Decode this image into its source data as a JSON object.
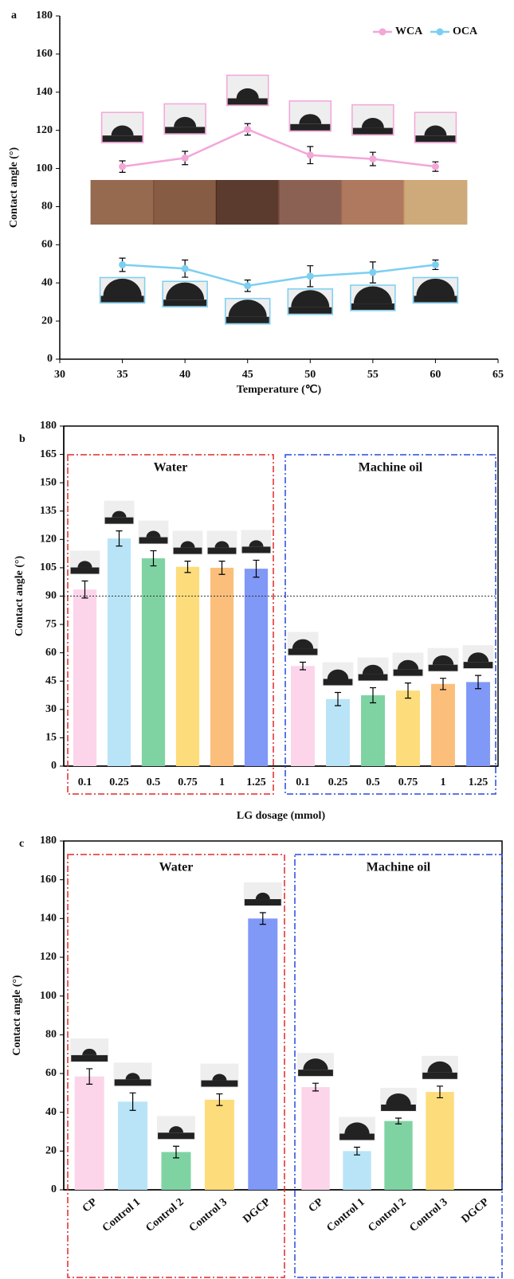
{
  "chart_data": [
    {
      "type": "line",
      "title": "a",
      "x_label": "Temperature (℃)",
      "y_label": "Contact angle (°)",
      "x": [
        35,
        40,
        45,
        50,
        55,
        60
      ],
      "series": [
        {
          "name": "WCA",
          "color": "#f3a6d8",
          "values": [
            101,
            105.5,
            120.5,
            107,
            105,
            101
          ],
          "errors": [
            3,
            3.5,
            3,
            4.5,
            3.5,
            2.5
          ]
        },
        {
          "name": "OCA",
          "color": "#7ccff0",
          "values": [
            49.5,
            47.5,
            38.5,
            43.5,
            45.5,
            49.5
          ],
          "errors": [
            3.5,
            4.5,
            3,
            5.5,
            5.5,
            2.5
          ]
        }
      ],
      "xlim": [
        30,
        65
      ],
      "xticks": [
        30,
        35,
        40,
        45,
        50,
        55,
        60,
        65
      ],
      "ylim": [
        0,
        180
      ],
      "yticks": [
        0,
        20,
        40,
        60,
        80,
        100,
        120,
        140,
        160,
        180
      ],
      "legend": "upper right"
    },
    {
      "type": "bar",
      "title": "b",
      "x_label": "LG dosage (mmol)",
      "y_label": "Contact angle (°)",
      "colors": [
        "#fcd5ea",
        "#b9e4f7",
        "#7fd3a3",
        "#fddc7b",
        "#fbbf7b",
        "#8098f6"
      ],
      "groups": [
        {
          "name": "Water",
          "color": "#e02828",
          "categories": [
            "0.1",
            "0.25",
            "0.5",
            "0.75",
            "1",
            "1.25"
          ],
          "values": [
            93.5,
            120.5,
            110,
            105.5,
            105,
            104.5
          ],
          "errors": [
            4.5,
            4,
            4,
            3,
            3.5,
            4.5
          ]
        },
        {
          "name": "Machine oil",
          "color": "#2848e0",
          "categories": [
            "0.1",
            "0.25",
            "0.5",
            "0.75",
            "1",
            "1.25"
          ],
          "values": [
            53,
            35.5,
            37.5,
            40,
            43.5,
            44.5
          ],
          "errors": [
            2,
            3.5,
            4,
            4,
            3,
            3.5
          ]
        }
      ],
      "hline": 90,
      "ylim": [
        0,
        180
      ],
      "yticks": [
        0,
        15,
        30,
        45,
        60,
        75,
        90,
        105,
        120,
        135,
        150,
        165,
        180
      ]
    },
    {
      "type": "bar",
      "title": "c",
      "y_label": "Contact angle (°)",
      "colors": [
        "#fcd5ea",
        "#b9e4f7",
        "#7fd3a3",
        "#fddc7b",
        "#8098f6"
      ],
      "groups": [
        {
          "name": "Water",
          "color": "#e02828",
          "categories": [
            "CP",
            "Control 1",
            "Control 2",
            "Control 3",
            "DGCP"
          ],
          "values": [
            58.5,
            45.5,
            19.5,
            46.5,
            140
          ],
          "errors": [
            4,
            4.5,
            3,
            3,
            3
          ]
        },
        {
          "name": "Machine oil",
          "color": "#2848e0",
          "categories": [
            "CP",
            "Control 1",
            "Control 2",
            "Control 3",
            "DGCP"
          ],
          "values": [
            53,
            20,
            35.5,
            50.5,
            0
          ],
          "errors": [
            2,
            2,
            1.5,
            3,
            null
          ]
        }
      ],
      "ylim": [
        0,
        180
      ],
      "yticks": [
        0,
        20,
        40,
        60,
        80,
        100,
        120,
        140,
        160,
        180
      ]
    }
  ]
}
